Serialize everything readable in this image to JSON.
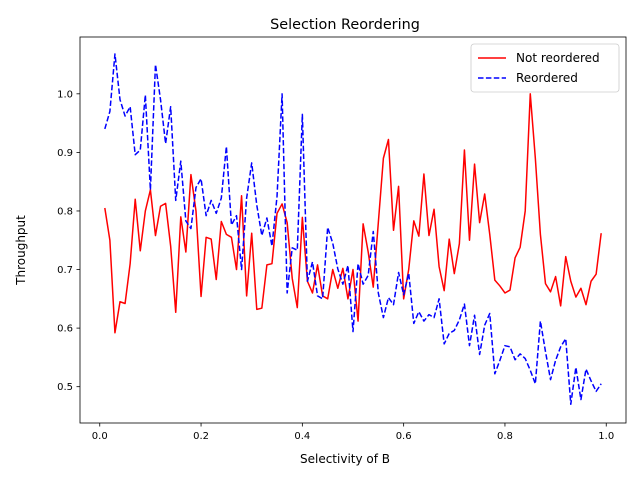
{
  "chart_data": {
    "type": "line",
    "title": "Selection Reordering",
    "xlabel": "Selectivity of B",
    "ylabel": "Throughput",
    "xlim": [
      -0.039,
      1.039
    ],
    "ylim": [
      0.438,
      1.097
    ],
    "xticks": [
      0.0,
      0.2,
      0.4,
      0.6,
      0.8,
      1.0
    ],
    "xtick_labels": [
      "0.0",
      "0.2",
      "0.4",
      "0.6",
      "0.8",
      "1.0"
    ],
    "yticks": [
      0.5,
      0.6,
      0.7,
      0.8,
      0.9,
      1.0
    ],
    "ytick_labels": [
      "0.5",
      "0.6",
      "0.7",
      "0.8",
      "0.9",
      "1.0"
    ],
    "legend_position": "top-right",
    "x": [
      0.01,
      0.02,
      0.03,
      0.04,
      0.05,
      0.06,
      0.07,
      0.08,
      0.09,
      0.1,
      0.11,
      0.12,
      0.13,
      0.14,
      0.15,
      0.16,
      0.17,
      0.18,
      0.19,
      0.2,
      0.21,
      0.22,
      0.23,
      0.24,
      0.25,
      0.26,
      0.27,
      0.28,
      0.29,
      0.3,
      0.31,
      0.32,
      0.33,
      0.34,
      0.35,
      0.36,
      0.37,
      0.38,
      0.39,
      0.4,
      0.41,
      0.42,
      0.43,
      0.44,
      0.45,
      0.46,
      0.47,
      0.48,
      0.49,
      0.5,
      0.51,
      0.52,
      0.53,
      0.54,
      0.55,
      0.56,
      0.57,
      0.58,
      0.59,
      0.6,
      0.61,
      0.62,
      0.63,
      0.64,
      0.65,
      0.66,
      0.67,
      0.68,
      0.69,
      0.7,
      0.71,
      0.72,
      0.73,
      0.74,
      0.75,
      0.76,
      0.77,
      0.78,
      0.79,
      0.8,
      0.81,
      0.82,
      0.83,
      0.84,
      0.85,
      0.86,
      0.87,
      0.88,
      0.89,
      0.9,
      0.91,
      0.92,
      0.93,
      0.94,
      0.95,
      0.96,
      0.97,
      0.98,
      0.99
    ],
    "series": [
      {
        "name": "Not reordered",
        "color": "#ff0000",
        "dash": "solid",
        "values": [
          0.805,
          0.75,
          0.592,
          0.645,
          0.642,
          0.71,
          0.82,
          0.732,
          0.8,
          0.836,
          0.758,
          0.808,
          0.813,
          0.74,
          0.627,
          0.79,
          0.73,
          0.862,
          0.8,
          0.654,
          0.755,
          0.752,
          0.683,
          0.782,
          0.76,
          0.755,
          0.7,
          0.826,
          0.655,
          0.762,
          0.632,
          0.634,
          0.708,
          0.71,
          0.796,
          0.812,
          0.78,
          0.685,
          0.635,
          0.789,
          0.68,
          0.66,
          0.708,
          0.655,
          0.65,
          0.7,
          0.668,
          0.702,
          0.65,
          0.7,
          0.612,
          0.778,
          0.73,
          0.67,
          0.78,
          0.89,
          0.922,
          0.767,
          0.842,
          0.65,
          0.7,
          0.783,
          0.757,
          0.863,
          0.758,
          0.803,
          0.705,
          0.664,
          0.752,
          0.693,
          0.744,
          0.904,
          0.75,
          0.88,
          0.78,
          0.829,
          0.76,
          0.682,
          0.672,
          0.66,
          0.665,
          0.72,
          0.738,
          0.8,
          1.0,
          0.89,
          0.76,
          0.676,
          0.662,
          0.688,
          0.638,
          0.722,
          0.68,
          0.653,
          0.668,
          0.64,
          0.68,
          0.692,
          0.762
        ]
      },
      {
        "name": "Reordered",
        "color": "#0000ff",
        "dash": "dashed",
        "values": [
          0.94,
          0.97,
          1.068,
          0.99,
          0.962,
          0.978,
          0.896,
          0.904,
          0.998,
          0.836,
          1.05,
          0.99,
          0.915,
          0.978,
          0.818,
          0.885,
          0.783,
          0.77,
          0.84,
          0.855,
          0.792,
          0.818,
          0.796,
          0.822,
          0.91,
          0.776,
          0.792,
          0.7,
          0.822,
          0.882,
          0.81,
          0.758,
          0.788,
          0.74,
          0.825,
          1.0,
          0.66,
          0.737,
          0.733,
          0.965,
          0.68,
          0.713,
          0.655,
          0.65,
          0.772,
          0.745,
          0.701,
          0.675,
          0.707,
          0.594,
          0.71,
          0.675,
          0.69,
          0.765,
          0.66,
          0.618,
          0.652,
          0.64,
          0.695,
          0.657,
          0.694,
          0.608,
          0.628,
          0.612,
          0.623,
          0.618,
          0.65,
          0.573,
          0.591,
          0.596,
          0.614,
          0.641,
          0.57,
          0.622,
          0.555,
          0.605,
          0.625,
          0.522,
          0.545,
          0.57,
          0.568,
          0.546,
          0.556,
          0.548,
          0.528,
          0.505,
          0.612,
          0.56,
          0.512,
          0.545,
          0.568,
          0.582,
          0.47,
          0.533,
          0.478,
          0.53,
          0.51,
          0.492,
          0.505
        ]
      }
    ]
  }
}
